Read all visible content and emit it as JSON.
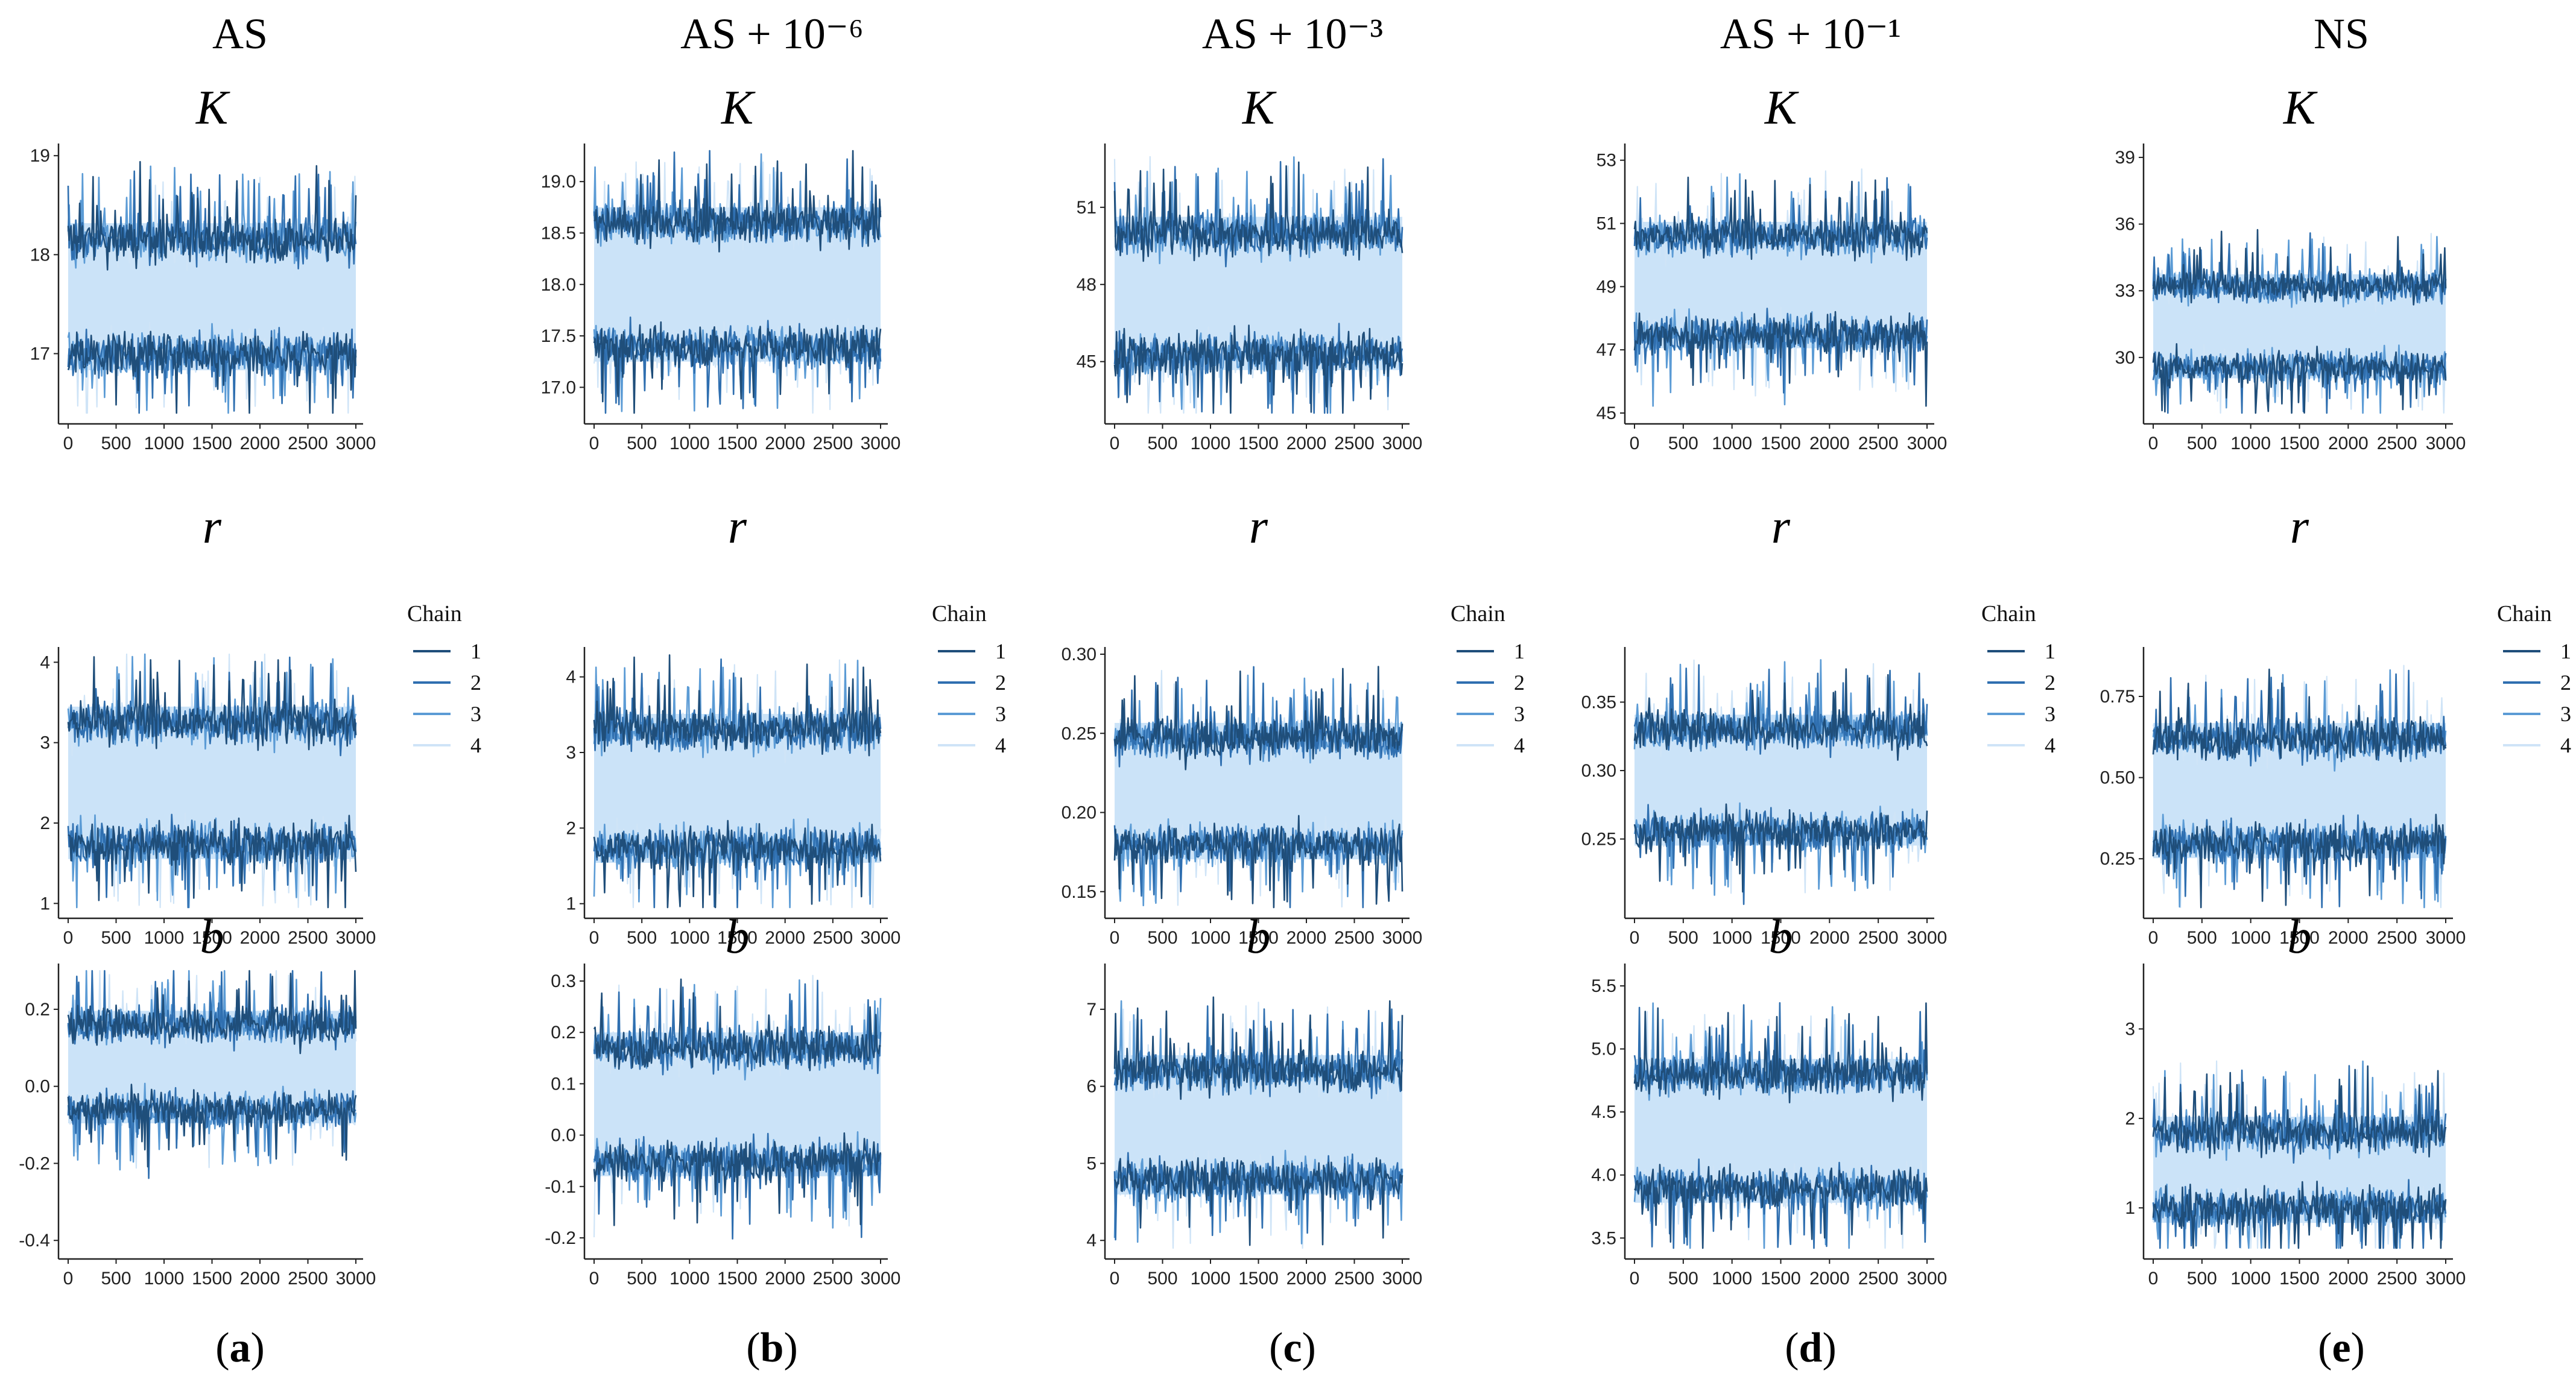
{
  "x_axis": {
    "min": 0,
    "max": 3000,
    "ticks": [
      0,
      500,
      1000,
      1500,
      2000,
      2500,
      3000
    ]
  },
  "series_colors": {
    "1": "#1f4e7a",
    "2": "#2f6fb0",
    "3": "#5b9bd5",
    "4": "#cfe4f7"
  },
  "band_color": "#cbe3f8",
  "legend": {
    "title": "Chain",
    "items": [
      "1",
      "2",
      "3",
      "4"
    ]
  },
  "chart_data": [
    {
      "type": "line",
      "column": 0,
      "column_title": "AS",
      "sublabel": "a",
      "param": "K",
      "ylim": [
        16.4,
        19.05
      ],
      "yticks": [
        17,
        18,
        19
      ],
      "ytick_labels": [
        "17",
        "18",
        "19"
      ],
      "lower": 17.0,
      "upper": 18.15,
      "spread": 0.28
    },
    {
      "type": "line",
      "column": 0,
      "param": "r",
      "ylim": [
        0.95,
        4.1
      ],
      "yticks": [
        1,
        2,
        3,
        4
      ],
      "ytick_labels": [
        "1",
        "2",
        "3",
        "4"
      ],
      "lower": 1.75,
      "upper": 3.25,
      "spread": 0.33
    },
    {
      "type": "line",
      "column": 0,
      "param": "b",
      "ylim": [
        -0.42,
        0.3
      ],
      "yticks": [
        -0.4,
        -0.2,
        0.0,
        0.2
      ],
      "ytick_labels": [
        "-0.4",
        "-0.2",
        "0.0",
        "0.2"
      ],
      "lower": -0.06,
      "upper": 0.16,
      "spread": 0.06
    },
    {
      "type": "line",
      "column": 1,
      "column_title": "AS + 10⁻⁶",
      "sublabel": "b",
      "param": "K",
      "ylim": [
        16.75,
        19.3
      ],
      "yticks": [
        17.0,
        17.5,
        18.0,
        18.5,
        19.0
      ],
      "ytick_labels": [
        "17.0",
        "17.5",
        "18.0",
        "18.5",
        "19.0"
      ],
      "lower": 17.4,
      "upper": 18.6,
      "spread": 0.25
    },
    {
      "type": "line",
      "column": 1,
      "param": "r",
      "ylim": [
        0.95,
        4.3
      ],
      "yticks": [
        1,
        2,
        3,
        4
      ],
      "ytick_labels": [
        "1",
        "2",
        "3",
        "4"
      ],
      "lower": 1.75,
      "upper": 3.3,
      "spread": 0.35
    },
    {
      "type": "line",
      "column": 1,
      "param": "b",
      "ylim": [
        -0.22,
        0.32
      ],
      "yticks": [
        -0.2,
        -0.1,
        0.0,
        0.1,
        0.2,
        0.3
      ],
      "ytick_labels": [
        "-0.2",
        "-0.1",
        "0.0",
        "0.1",
        "0.2",
        "0.3"
      ],
      "lower": -0.05,
      "upper": 0.17,
      "spread": 0.05
    },
    {
      "type": "line",
      "column": 2,
      "column_title": "AS + 10⁻³",
      "sublabel": "c",
      "param": "K",
      "ylim": [
        43.0,
        53.2
      ],
      "yticks": [
        45,
        48,
        51
      ],
      "ytick_labels": [
        "45",
        "48",
        "51"
      ],
      "lower": 45.3,
      "upper": 50.0,
      "spread": 1.05
    },
    {
      "type": "line",
      "column": 2,
      "param": "r",
      "ylim": [
        0.14,
        0.3
      ],
      "yticks": [
        0.15,
        0.2,
        0.25,
        0.3
      ],
      "ytick_labels": [
        "0.15",
        "0.20",
        "0.25",
        "0.30"
      ],
      "lower": 0.18,
      "upper": 0.247,
      "spread": 0.016
    },
    {
      "type": "line",
      "column": 2,
      "param": "b",
      "ylim": [
        3.9,
        7.5
      ],
      "yticks": [
        4,
        5,
        6,
        7
      ],
      "ytick_labels": [
        "4",
        "5",
        "6",
        "7"
      ],
      "lower": 4.8,
      "upper": 6.2,
      "spread": 0.34
    },
    {
      "type": "line",
      "column": 3,
      "column_title": "AS + 10⁻¹",
      "sublabel": "d",
      "param": "K",
      "ylim": [
        45.0,
        53.3
      ],
      "yticks": [
        45,
        47,
        49,
        51,
        53
      ],
      "ytick_labels": [
        "45",
        "47",
        "49",
        "51",
        "53"
      ],
      "lower": 47.5,
      "upper": 50.6,
      "spread": 0.75
    },
    {
      "type": "line",
      "column": 3,
      "param": "r",
      "ylim": [
        0.2,
        0.385
      ],
      "yticks": [
        0.25,
        0.3,
        0.35
      ],
      "ytick_labels": [
        "0.25",
        "0.30",
        "0.35"
      ],
      "lower": 0.256,
      "upper": 0.33,
      "spread": 0.018
    },
    {
      "type": "line",
      "column": 3,
      "param": "b",
      "ylim": [
        3.42,
        5.62
      ],
      "yticks": [
        3.5,
        4.0,
        4.5,
        5.0,
        5.5
      ],
      "ytick_labels": [
        "3.5",
        "4.0",
        "4.5",
        "5.0",
        "5.5"
      ],
      "lower": 3.9,
      "upper": 4.8,
      "spread": 0.2
    },
    {
      "type": "line",
      "column": 4,
      "column_title": "NS",
      "sublabel": "e",
      "param": "K",
      "ylim": [
        27.5,
        39.3
      ],
      "yticks": [
        30,
        33,
        36,
        39
      ],
      "ytick_labels": [
        "30",
        "33",
        "36",
        "39"
      ],
      "lower": 29.6,
      "upper": 33.2,
      "spread": 0.9
    },
    {
      "type": "line",
      "column": 4,
      "param": "r",
      "ylim": [
        0.1,
        0.88
      ],
      "yticks": [
        0.25,
        0.5,
        0.75
      ],
      "ytick_labels": [
        "0.25",
        "0.50",
        "0.75"
      ],
      "lower": 0.3,
      "upper": 0.62,
      "spread": 0.08
    },
    {
      "type": "line",
      "column": 4,
      "param": "b",
      "ylim": [
        0.55,
        3.65
      ],
      "yticks": [
        1,
        2,
        3
      ],
      "ytick_labels": [
        "1",
        "2",
        "3"
      ],
      "lower": 1.0,
      "upper": 1.85,
      "spread": 0.28
    }
  ]
}
